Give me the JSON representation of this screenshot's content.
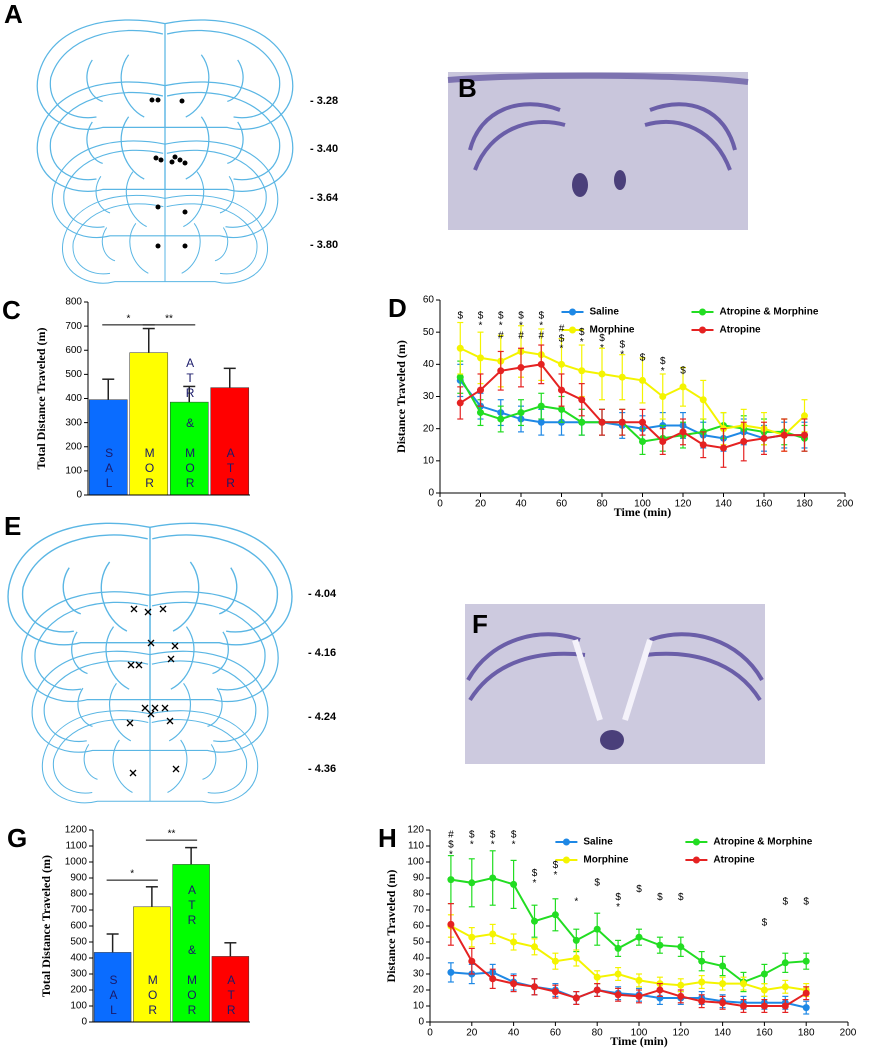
{
  "atlas_a": {
    "label": "A",
    "levels": [
      "- 3.28",
      "- 3.40",
      "- 3.64",
      "- 3.80"
    ]
  },
  "photo_b": {
    "label": "B"
  },
  "atlas_e": {
    "label": "E",
    "levels": [
      "- 4.04",
      "- 4.16",
      "- 4.24",
      "- 4.36"
    ]
  },
  "photo_f": {
    "label": "F"
  },
  "chart_data": [
    {
      "type": "bar",
      "panel_label": "C",
      "y_label": "Total Distance Traveled (m)",
      "categories": [
        "SAL",
        "MOR",
        "ATR & MOR",
        "ATR"
      ],
      "values": [
        395,
        590,
        385,
        445
      ],
      "errors": [
        85,
        100,
        65,
        80
      ],
      "colors": [
        "#0a6cff",
        "#ffff00",
        "#00ff00",
        "#ff0000"
      ],
      "ylim": [
        0,
        800
      ],
      "yticks": [
        0,
        100,
        200,
        300,
        400,
        500,
        600,
        700,
        800
      ],
      "significance": [
        {
          "from": 0,
          "to": 1,
          "y": 705,
          "text": "*"
        },
        {
          "from": 1,
          "to": 2,
          "y": 705,
          "text": "**"
        }
      ]
    },
    {
      "type": "line",
      "panel_label": "D",
      "y_label": "Distance Traveled (m)",
      "x_label": "Time (min)",
      "x": [
        10,
        20,
        30,
        40,
        50,
        60,
        70,
        80,
        90,
        100,
        110,
        120,
        130,
        140,
        150,
        160,
        170,
        180
      ],
      "xlim": [
        0,
        200
      ],
      "xticks": [
        0,
        20,
        40,
        60,
        80,
        100,
        120,
        140,
        160,
        180,
        200
      ],
      "ylim": [
        0,
        60
      ],
      "yticks": [
        0,
        10,
        20,
        30,
        40,
        50,
        60
      ],
      "legend": "top-right",
      "series": [
        {
          "name": "Saline",
          "color": "#1e88e5",
          "values": [
            35,
            27,
            25,
            23,
            22,
            22,
            22,
            22,
            21,
            20,
            21,
            21,
            18,
            17,
            19,
            17,
            18,
            18
          ],
          "errors": [
            5,
            4,
            4,
            4,
            4,
            4,
            4,
            4,
            4,
            4,
            4,
            4,
            4,
            4,
            4,
            4,
            4,
            4
          ]
        },
        {
          "name": "Atropine & Morphine",
          "color": "#22dd22",
          "values": [
            36,
            25,
            23,
            25,
            27,
            26,
            22,
            22,
            22,
            16,
            17,
            18,
            19,
            21,
            20,
            19,
            19,
            17
          ],
          "errors": [
            5,
            4,
            4,
            4,
            4,
            4,
            4,
            4,
            4,
            4,
            4,
            4,
            4,
            4,
            4,
            4,
            4,
            4
          ]
        },
        {
          "name": "Morphine",
          "color": "#f4f400",
          "values": [
            45,
            42,
            41,
            44,
            43,
            40,
            38,
            37,
            36,
            35,
            30,
            33,
            29,
            20,
            21,
            20,
            18,
            24
          ],
          "errors": [
            8,
            8,
            8,
            8,
            8,
            8,
            8,
            8,
            7,
            7,
            7,
            6,
            6,
            5,
            5,
            5,
            5,
            5
          ]
        },
        {
          "name": "Atropine",
          "color": "#e52222",
          "values": [
            28,
            32,
            38,
            39,
            40,
            32,
            29,
            22,
            22,
            22,
            16,
            19,
            15,
            14,
            16,
            17,
            18,
            18
          ],
          "errors": [
            5,
            5,
            6,
            6,
            6,
            5,
            5,
            4,
            4,
            4,
            4,
            4,
            4,
            6,
            6,
            5,
            5,
            5
          ]
        }
      ],
      "annotations": [
        {
          "x": 10,
          "y": 55,
          "text": [
            "$"
          ]
        },
        {
          "x": 20,
          "y": 55,
          "text": [
            "$",
            "*"
          ]
        },
        {
          "x": 30,
          "y": 55,
          "text": [
            "$",
            "*",
            "#"
          ]
        },
        {
          "x": 40,
          "y": 55,
          "text": [
            "$",
            "*",
            "#"
          ]
        },
        {
          "x": 50,
          "y": 55,
          "text": [
            "$",
            "*",
            "#"
          ]
        },
        {
          "x": 60,
          "y": 51,
          "text": [
            "#",
            "$",
            "*"
          ]
        },
        {
          "x": 70,
          "y": 50,
          "text": [
            "$",
            "*"
          ]
        },
        {
          "x": 80,
          "y": 48,
          "text": [
            "$",
            "*"
          ]
        },
        {
          "x": 90,
          "y": 46,
          "text": [
            "$",
            "*"
          ]
        },
        {
          "x": 100,
          "y": 42,
          "text": [
            "$"
          ]
        },
        {
          "x": 110,
          "y": 41,
          "text": [
            "$",
            "*"
          ]
        },
        {
          "x": 120,
          "y": 38,
          "text": [
            "$"
          ]
        }
      ]
    },
    {
      "type": "bar",
      "panel_label": "G",
      "y_label": "Total Distance Traveled (m)",
      "categories": [
        "SAL",
        "MOR",
        "ATR & MOR",
        "ATR"
      ],
      "values": [
        435,
        720,
        985,
        410
      ],
      "errors": [
        115,
        125,
        105,
        85
      ],
      "colors": [
        "#0a6cff",
        "#ffff00",
        "#00ff00",
        "#ff0000"
      ],
      "ylim": [
        0,
        1200
      ],
      "yticks": [
        0,
        100,
        200,
        300,
        400,
        500,
        600,
        700,
        800,
        900,
        1000,
        1100,
        1200
      ],
      "significance": [
        {
          "from": 0,
          "to": 1,
          "y": 887,
          "text": "*"
        },
        {
          "from": 1,
          "to": 2,
          "y": 1137,
          "text": "**"
        }
      ]
    },
    {
      "type": "line",
      "panel_label": "H",
      "y_label": "Distance Traveled (m)",
      "x_label": "Time (min)",
      "x": [
        10,
        20,
        30,
        40,
        50,
        60,
        70,
        80,
        90,
        100,
        110,
        120,
        130,
        140,
        150,
        160,
        170,
        180
      ],
      "xlim": [
        0,
        200
      ],
      "xticks": [
        0,
        20,
        40,
        60,
        80,
        100,
        120,
        140,
        160,
        180,
        200
      ],
      "ylim": [
        0,
        120
      ],
      "yticks": [
        0,
        10,
        20,
        30,
        40,
        50,
        60,
        70,
        80,
        90,
        100,
        110,
        120
      ],
      "legend": "top-right",
      "series": [
        {
          "name": "Saline",
          "color": "#1e88e5",
          "values": [
            31,
            30,
            31,
            25,
            22,
            20,
            15,
            20,
            18,
            17,
            15,
            15,
            15,
            13,
            12,
            12,
            12,
            9
          ],
          "errors": [
            6,
            6,
            5,
            5,
            5,
            4,
            4,
            4,
            4,
            4,
            4,
            4,
            4,
            4,
            4,
            4,
            4,
            4
          ]
        },
        {
          "name": "Atropine & Morphine",
          "color": "#22dd22",
          "values": [
            89,
            87,
            90,
            86,
            63,
            67,
            51,
            58,
            46,
            53,
            48,
            47,
            38,
            35,
            25,
            30,
            37,
            38
          ],
          "errors": [
            15,
            15,
            17,
            15,
            10,
            10,
            7,
            10,
            5,
            5,
            5,
            6,
            6,
            6,
            6,
            6,
            6,
            5
          ]
        },
        {
          "name": "Morphine",
          "color": "#f4f400",
          "values": [
            60,
            53,
            55,
            50,
            47,
            38,
            40,
            28,
            30,
            26,
            24,
            23,
            25,
            24,
            24,
            20,
            22,
            20
          ],
          "errors": [
            7,
            6,
            6,
            5,
            5,
            5,
            5,
            4,
            4,
            4,
            4,
            4,
            4,
            4,
            4,
            4,
            4,
            4
          ]
        },
        {
          "name": "Atropine",
          "color": "#e52222",
          "values": [
            61,
            38,
            27,
            24,
            22,
            19,
            15,
            20,
            17,
            16,
            20,
            16,
            13,
            12,
            10,
            10,
            10,
            18
          ],
          "errors": [
            13,
            8,
            6,
            5,
            5,
            4,
            4,
            4,
            4,
            4,
            4,
            4,
            4,
            4,
            4,
            4,
            4,
            4
          ]
        }
      ],
      "annotations": [
        {
          "x": 10,
          "y": 117,
          "text": [
            "#",
            "$",
            "*"
          ]
        },
        {
          "x": 20,
          "y": 117,
          "text": [
            "$",
            "*"
          ]
        },
        {
          "x": 30,
          "y": 117,
          "text": [
            "$",
            "*"
          ]
        },
        {
          "x": 40,
          "y": 117,
          "text": [
            "$",
            "*"
          ]
        },
        {
          "x": 50,
          "y": 93,
          "text": [
            "$",
            "*"
          ]
        },
        {
          "x": 60,
          "y": 98,
          "text": [
            "$",
            "*"
          ]
        },
        {
          "x": 70,
          "y": 75,
          "text": [
            "*"
          ]
        },
        {
          "x": 80,
          "y": 87,
          "text": [
            "$"
          ]
        },
        {
          "x": 90,
          "y": 78,
          "text": [
            "$",
            "*"
          ]
        },
        {
          "x": 100,
          "y": 83,
          "text": [
            "$"
          ]
        },
        {
          "x": 110,
          "y": 78,
          "text": [
            "$"
          ]
        },
        {
          "x": 120,
          "y": 78,
          "text": [
            "$"
          ]
        },
        {
          "x": 160,
          "y": 62,
          "text": [
            "$"
          ]
        },
        {
          "x": 170,
          "y": 75,
          "text": [
            "$"
          ]
        },
        {
          "x": 180,
          "y": 75,
          "text": [
            "$"
          ]
        }
      ]
    }
  ]
}
